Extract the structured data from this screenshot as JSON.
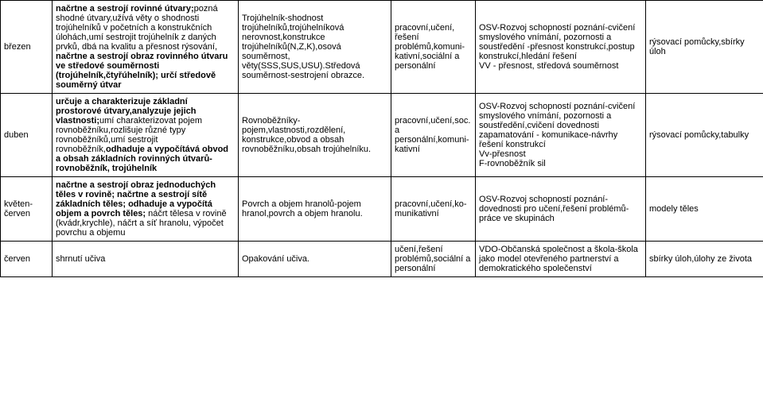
{
  "rows": [
    {
      "month": "březen",
      "outcome_pre_bold": "",
      "outcome_bold1": "načrtne a sestrojí rovinné útvary;",
      "outcome_mid1": "pozná shodné útvary,užívá věty o shodnosti trojúhelníků v početních a konstrukčních úlohách,umí sestrojit trojúhelník z daných prvků, dbá na kvalitu a přesnost rýsování, ",
      "outcome_bold2": "načrtne a sestrojí obraz rovinného útvaru ve středové souměrnosti (trojúhelník,čtyřúhelník); určí středově souměrný útvar",
      "outcome_mid2": "",
      "topic": "Trojúhelník-shodnost trojúhelníků,trojúhelníková nerovnost,konstrukce trojúhelníků(N,Z,K),osová souměrnost, věty(SSS,SUS,USU).Středová souměrnost-sestrojení obrazce.",
      "competence": "pracovní,učení, řešení problémů,komuni-kativní,sociální a personální",
      "cross": "OSV-Rozvoj schopností poznání-cvičení smyslového vnímání, pozornosti a soustředění -přesnost konstrukcí,postup konstrukcí,hledání řešení\nVV - přesnost, středová souměrnost",
      "tools": "rýsovací pomůcky,sbírky úloh"
    },
    {
      "month": "duben",
      "outcome_pre_bold": "",
      "outcome_bold1": "určuje a charakterizuje základní prostorové útvary,analyzuje jejich vlastnosti;",
      "outcome_mid1": "umí charakterizovat pojem rovnoběžníku,rozlišuje různé typy rovnoběžníků,umí sestrojit rovnoběžník,",
      "outcome_bold2": "odhaduje a vypočítává obvod a obsah základních rovinných útvarů- rovnoběžník, trojúhelník",
      "outcome_mid2": "",
      "topic": "Rovnoběžníky-pojem,vlastnosti,rozdělení, konstrukce,obvod a obsah rovnoběžníku,obsah trojúhelníku.",
      "competence": "pracovní,učení,soc. a personální,komuni-kativní",
      "cross": "OSV-Rozvoj schopností poznání-cvičení smyslového vnímání, pozornosti a soustředění,cvičení dovednosti zapamatování - komunikace-návrhy řešení konstrukcí\nVv-přesnost\nF-rovnoběžník sil",
      "tools": "rýsovací pomůcky,tabulky"
    },
    {
      "month": "květen-červen",
      "outcome_pre_bold": "",
      "outcome_bold1": "načrtne a sestrojí obraz jednoduchých těles v rovině; načrtne a sestrojí sítě základních těles; odhaduje a vypočítá objem a povrch těles;",
      "outcome_mid1": " náčrt tělesa v rovině (kvádr,krychle), náčrt a síť hranolu, výpočet povrchu a objemu",
      "outcome_bold2": "",
      "outcome_mid2": "",
      "topic": "Povrch a objem hranolů-pojem hranol,povrch a objem hranolu.",
      "competence": "pracovní,učení,ko-munikativní",
      "cross": "OSV-Rozvoj schopností poznání-dovednosti pro učení,řešení problémů-práce ve skupinách",
      "tools": "modely těles"
    },
    {
      "month": "červen",
      "outcome_pre_bold": "shrnutí učiva",
      "outcome_bold1": "",
      "outcome_mid1": "",
      "outcome_bold2": "",
      "outcome_mid2": "",
      "topic": "Opakování učiva.",
      "competence": "učení,řešení problémů,sociální a personální",
      "cross": "VDO-Občanská společnost a škola-škola jako model otevřeného partnerství a demokratického společenství",
      "tools": "sbírky úloh,úlohy ze života"
    }
  ]
}
